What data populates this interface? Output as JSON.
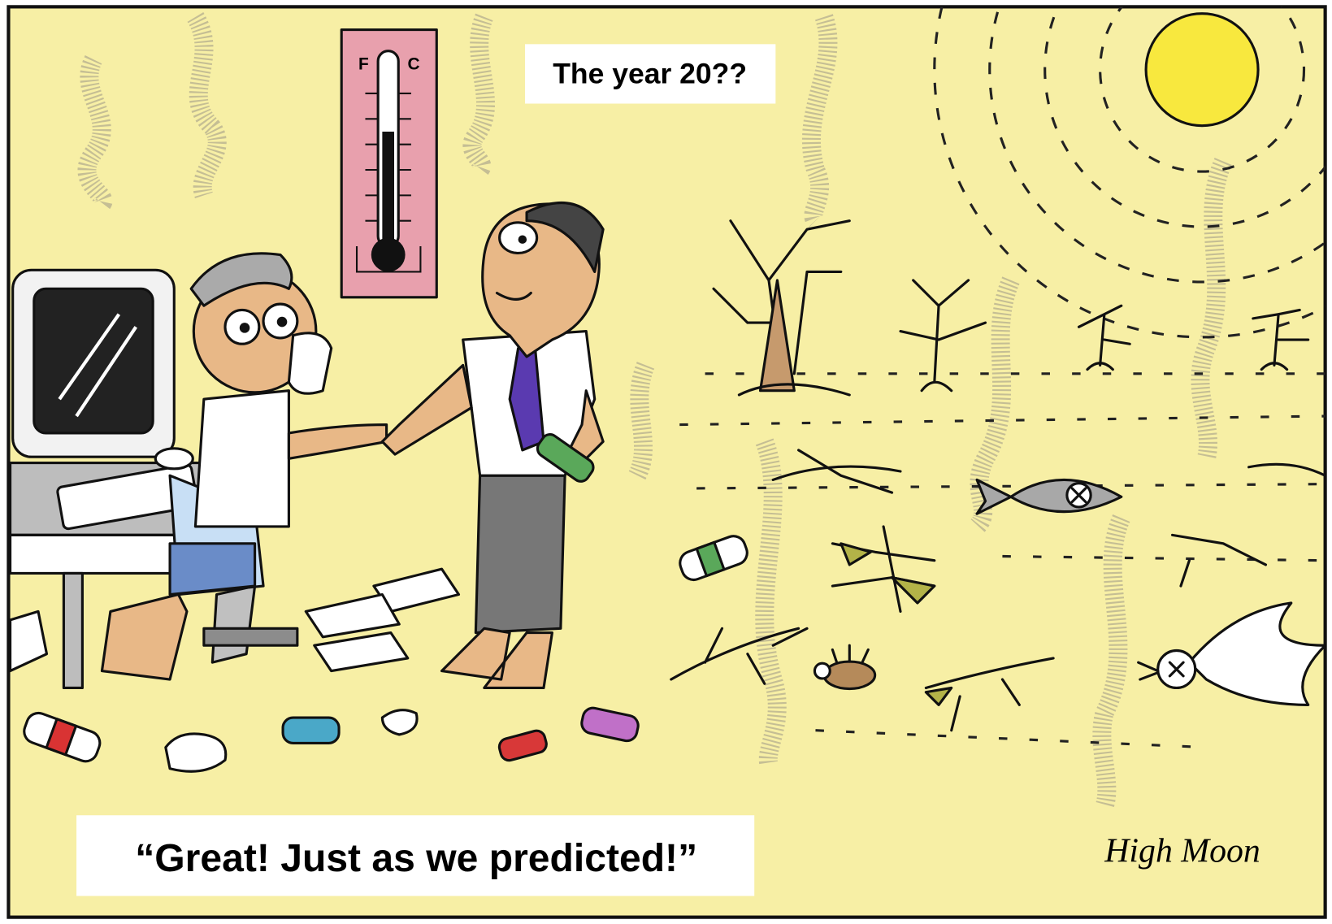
{
  "label": "The year 20??",
  "thermometer": {
    "scale_left": "F",
    "scale_right": "C"
  },
  "caption": "“Great! Just as we predicted!”",
  "signature": "High Moon"
}
